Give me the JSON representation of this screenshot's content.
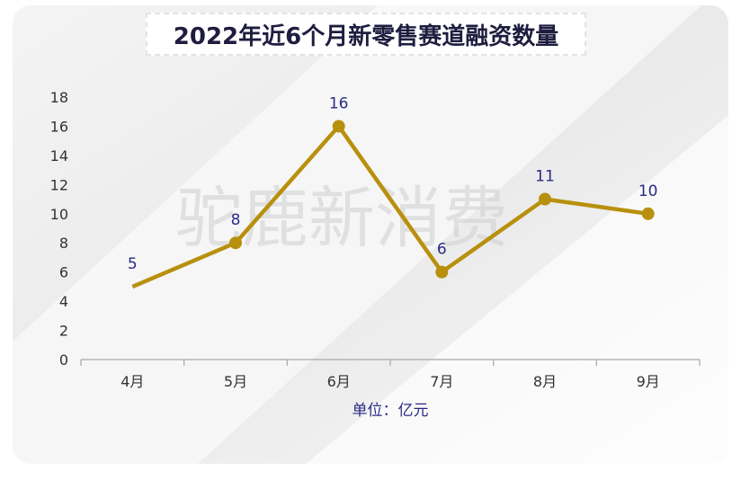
{
  "chart_data": {
    "type": "line",
    "title": "2022年近6个月新零售赛道融资数量",
    "categories": [
      "4月",
      "5月",
      "6月",
      "7月",
      "8月",
      "9月"
    ],
    "series": [
      {
        "values": [
          5,
          8,
          16,
          6,
          11,
          10
        ]
      }
    ],
    "data_labels": [
      "5",
      "8",
      "16",
      "6",
      "11",
      "10"
    ],
    "y_ticks": [
      "0",
      "2",
      "4",
      "6",
      "8",
      "10",
      "12",
      "14",
      "16",
      "18"
    ],
    "ylim": [
      0,
      18
    ],
    "xlabel": "单位：亿元",
    "ylabel": "",
    "grid": false,
    "legend": "none",
    "line_color": "#b8900e",
    "label_color": "#2a2a86",
    "watermark": "驼鹿新消费"
  }
}
